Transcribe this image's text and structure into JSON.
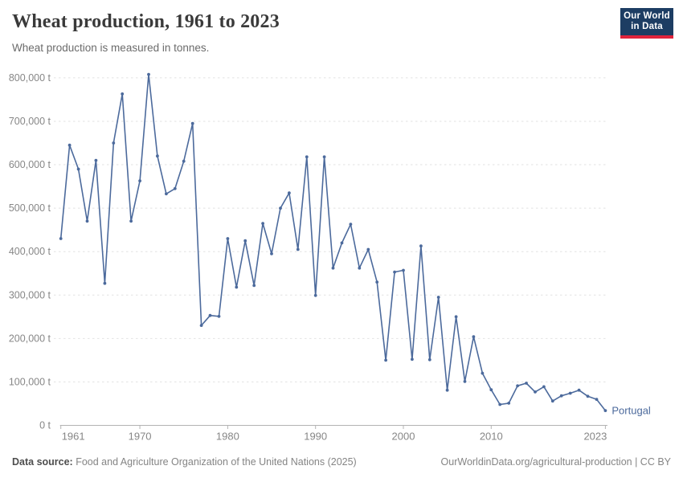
{
  "header": {
    "title": "Wheat production, 1961 to 2023",
    "subtitle": "Wheat production is measured in tonnes.",
    "logo_line1": "Our World",
    "logo_line2": "in Data"
  },
  "chart_data": {
    "type": "line",
    "title": "Wheat production, 1961 to 2023",
    "ylabel": "",
    "xlabel": "",
    "unit": "t",
    "grid": "horizontal-dashed",
    "legend_position": "end-of-line-label",
    "xlim": [
      1961,
      2023
    ],
    "ylim": [
      0,
      800000
    ],
    "x_ticks": [
      1961,
      1970,
      1980,
      1990,
      2000,
      2010,
      2023
    ],
    "y_ticks": [
      0,
      100000,
      200000,
      300000,
      400000,
      500000,
      600000,
      700000,
      800000
    ],
    "y_tick_suffix": " t",
    "series": [
      {
        "name": "Portugal",
        "x": [
          1961,
          1962,
          1963,
          1964,
          1965,
          1966,
          1967,
          1968,
          1969,
          1970,
          1971,
          1972,
          1973,
          1974,
          1975,
          1976,
          1977,
          1978,
          1979,
          1980,
          1981,
          1982,
          1983,
          1984,
          1985,
          1986,
          1987,
          1988,
          1989,
          1990,
          1991,
          1992,
          1993,
          1994,
          1995,
          1996,
          1997,
          1998,
          1999,
          2000,
          2001,
          2002,
          2003,
          2004,
          2005,
          2006,
          2007,
          2008,
          2009,
          2010,
          2011,
          2012,
          2013,
          2014,
          2015,
          2016,
          2017,
          2018,
          2019,
          2020,
          2021,
          2022,
          2023
        ],
        "values": [
          430000,
          645000,
          590000,
          470000,
          610000,
          327000,
          650000,
          763000,
          470000,
          563000,
          808000,
          620000,
          533000,
          545000,
          608000,
          695000,
          230000,
          253000,
          251000,
          430000,
          318000,
          425000,
          322000,
          465000,
          395000,
          500000,
          535000,
          405000,
          618000,
          299000,
          618000,
          362000,
          420000,
          463000,
          362000,
          405000,
          330000,
          150000,
          353000,
          357000,
          152000,
          413000,
          151000,
          295000,
          81000,
          250000,
          101000,
          204000,
          120000,
          82000,
          48000,
          51000,
          91000,
          97000,
          77000,
          89000,
          56000,
          68000,
          74000,
          81000,
          67000,
          60000,
          34000
        ]
      }
    ]
  },
  "footer": {
    "datasource_label": "Data source:",
    "datasource_text": " Food and Agriculture Organization of the United Nations (2025)",
    "link_text": "OurWorldinData.org/agricultural-production | CC BY"
  },
  "colors": {
    "line": "#4c6a9c",
    "entity_label": "#4c6a9c",
    "grid": "#e2e2e2",
    "axis": "#b3b3b3",
    "tick_text": "#878787",
    "title": "#3a3a3a",
    "subtitle": "#6b6b6b",
    "logo_bg": "#1d3d63",
    "logo_red": "#e0233c"
  }
}
